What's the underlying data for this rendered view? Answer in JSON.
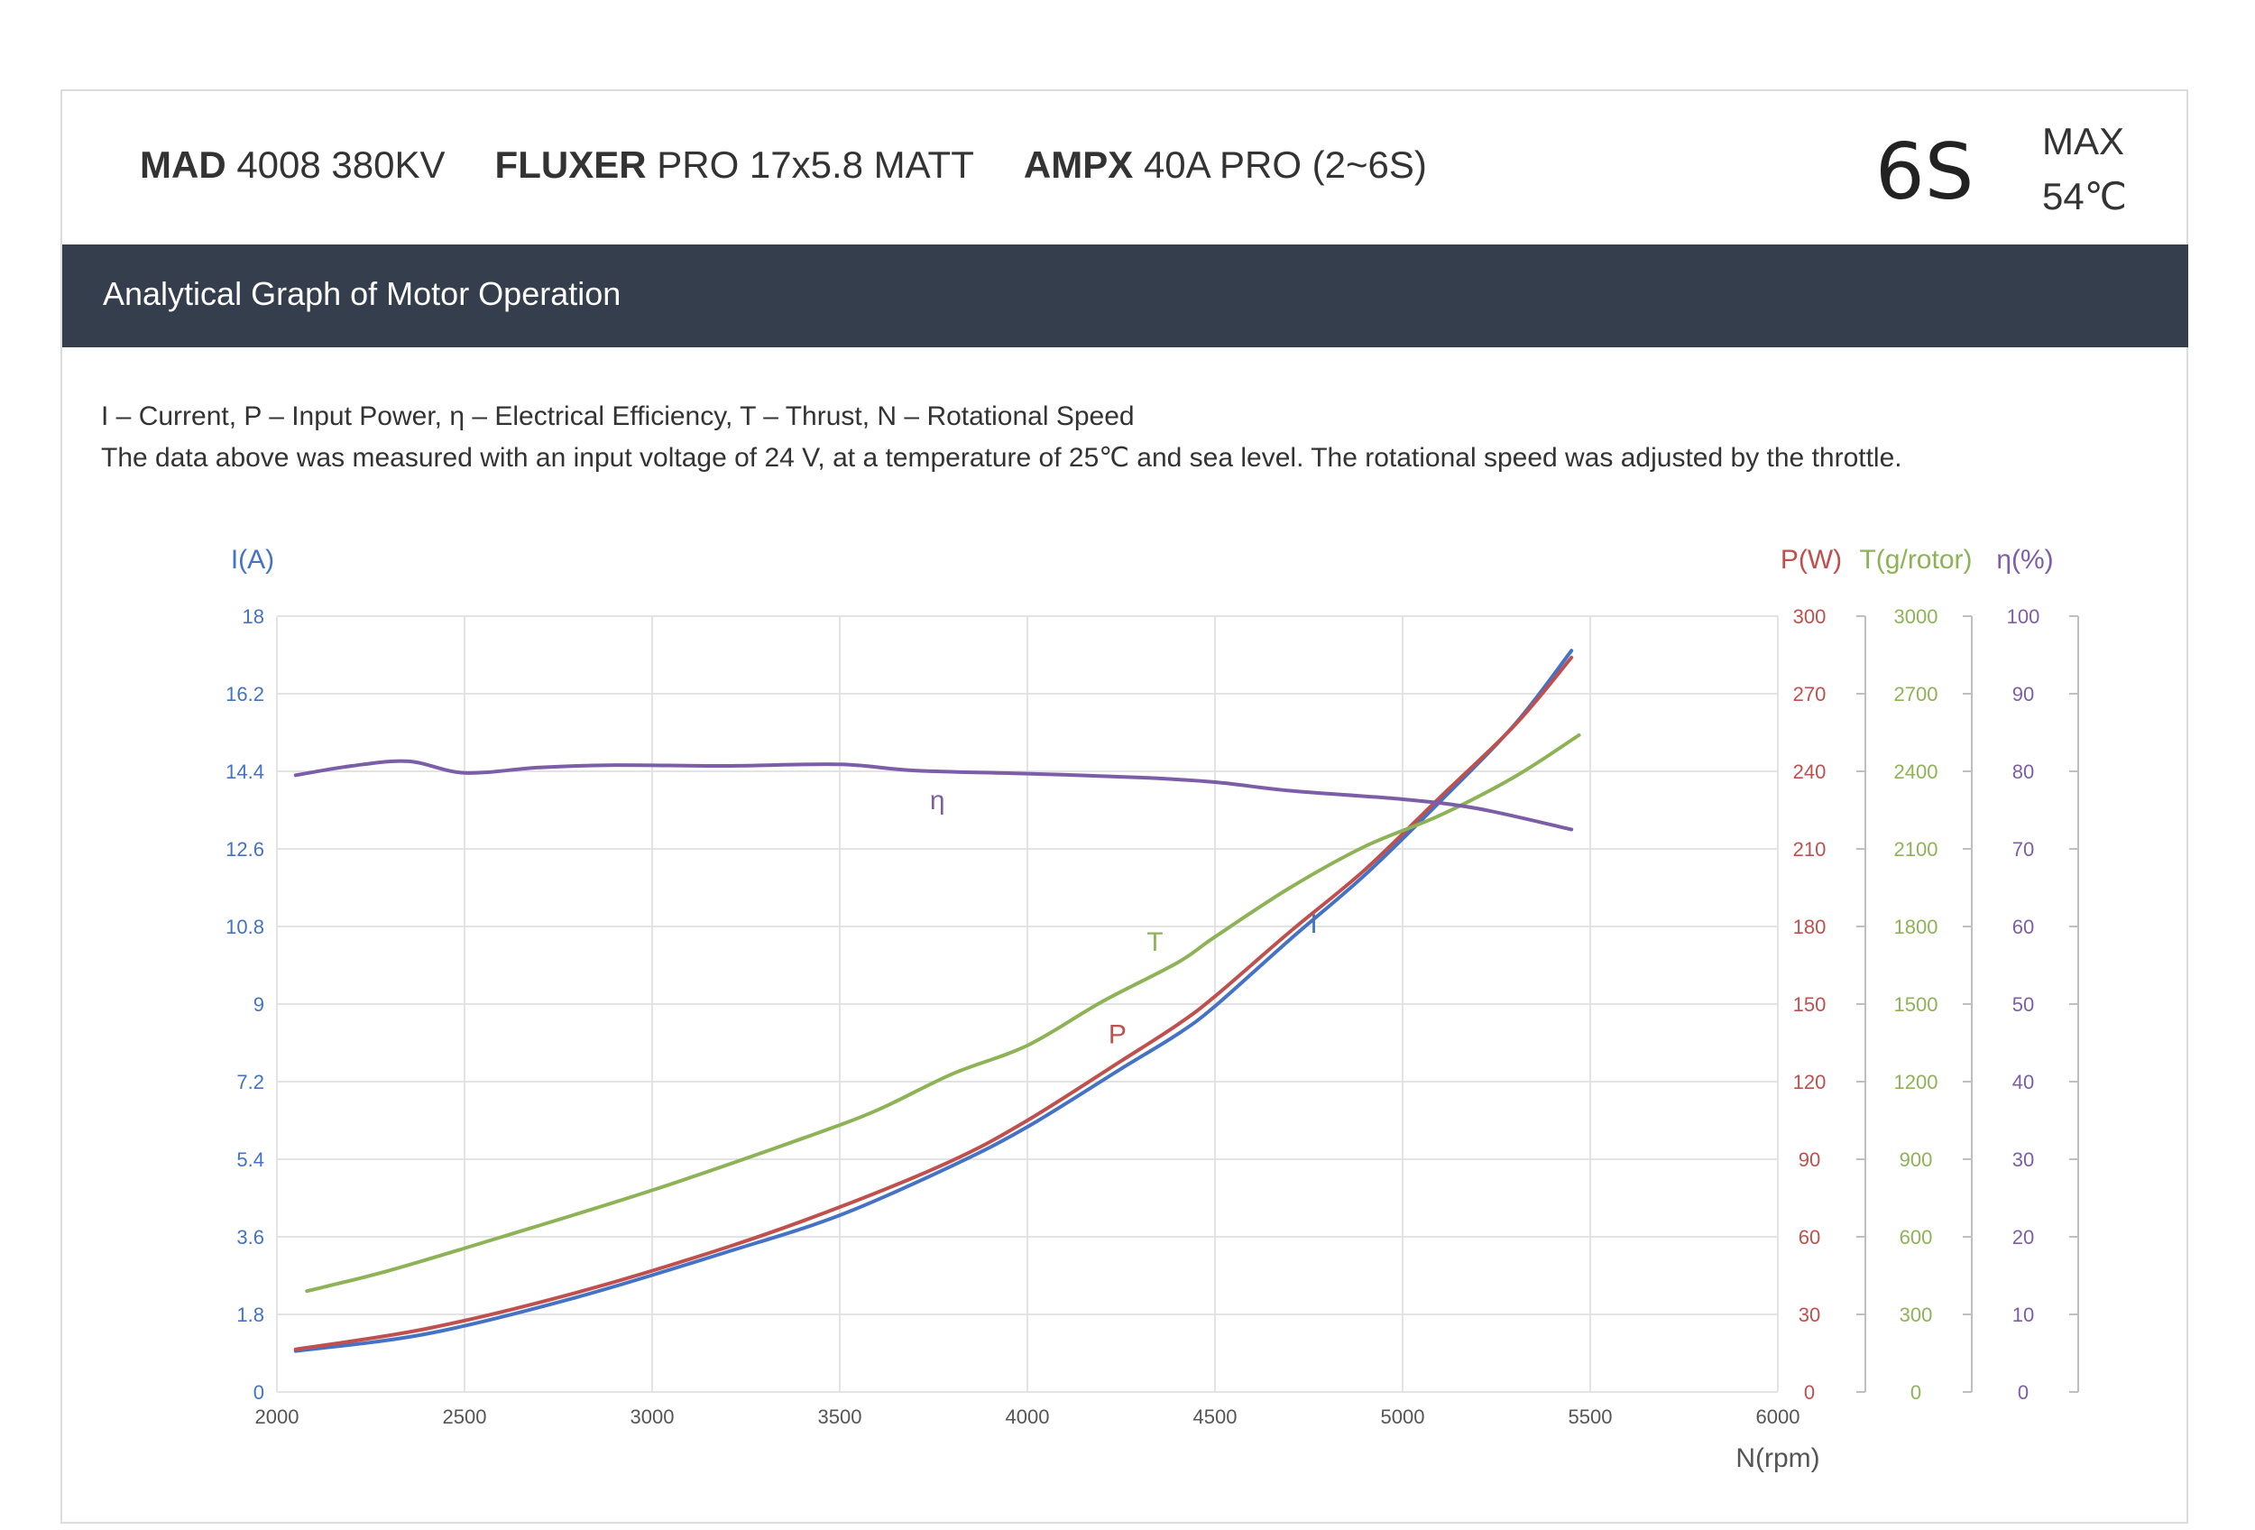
{
  "header": {
    "motor_brand": "MAD",
    "motor_model": "4008 380KV",
    "prop_brand": "FLUXER",
    "prop_model": "PRO 17x5.8 MATT",
    "esc_brand": "AMPX",
    "esc_model": "40A PRO (2~6S)",
    "cells": "6S",
    "max_label": "MAX",
    "max_temp": "54℃"
  },
  "section_title": "Analytical Graph of Motor Operation",
  "legend_line": "I – Current, P – Input Power, η – Electrical Efficiency, T – Thrust,   N – Rotational Speed",
  "note_line": "The data above was measured with an input voltage of 24 V, at a temperature of 25℃ and sea level. The rotational speed was adjusted by the throttle.",
  "colors": {
    "current": "#4472c4",
    "power": "#c0504d",
    "thrust": "#8db356",
    "efficiency": "#7b5ea7",
    "band": "#343e4d"
  },
  "chart_data": {
    "type": "line",
    "xlabel": "N(rpm)",
    "xlim": [
      2000,
      6000
    ],
    "x_ticks": [
      "2000",
      "2500",
      "3000",
      "3500",
      "4000",
      "4500",
      "5000",
      "5500",
      "6000"
    ],
    "axes": {
      "current": {
        "label": "I(A)",
        "range": [
          0,
          18
        ],
        "ticks": [
          "0",
          "1.8",
          "3.6",
          "5.4",
          "7.2",
          "9",
          "10.8",
          "12.6",
          "14.4",
          "16.2",
          "18"
        ]
      },
      "power": {
        "label": "P(W)",
        "range": [
          0,
          300
        ],
        "ticks": [
          "0",
          "30",
          "60",
          "90",
          "120",
          "150",
          "180",
          "210",
          "240",
          "270",
          "300"
        ]
      },
      "thrust": {
        "label": "T(g/rotor)",
        "range": [
          0,
          3000
        ],
        "ticks": [
          "0",
          "300",
          "600",
          "900",
          "1200",
          "1500",
          "1800",
          "2100",
          "2400",
          "2700",
          "3000"
        ]
      },
      "efficiency": {
        "label": "η(%)",
        "range": [
          0,
          100
        ],
        "ticks": [
          "0",
          "10",
          "20",
          "30",
          "40",
          "50",
          "60",
          "70",
          "80",
          "90",
          "100"
        ]
      }
    },
    "grid": true,
    "series": [
      {
        "name": "I",
        "axis": "current",
        "x": [
          2050,
          2400,
          2800,
          3200,
          3500,
          3800,
          4000,
          4250,
          4400,
          4500,
          4700,
          4900,
          5100,
          5300,
          5450
        ],
        "values": [
          0.95,
          1.35,
          2.2,
          3.25,
          4.1,
          5.25,
          6.15,
          7.5,
          8.3,
          8.95,
          10.5,
          12.0,
          13.7,
          15.5,
          17.2
        ]
      },
      {
        "name": "P",
        "axis": "power",
        "x": [
          2050,
          2400,
          2800,
          3200,
          3500,
          3800,
          4000,
          4250,
          4400,
          4500,
          4700,
          4900,
          5100,
          5300,
          5450
        ],
        "values": [
          16.5,
          24.5,
          38.5,
          56,
          71.5,
          89.5,
          105,
          128,
          142,
          153,
          178,
          202,
          230,
          258,
          284
        ]
      },
      {
        "name": "T",
        "axis": "thrust",
        "x": [
          2080,
          2300,
          2600,
          3000,
          3400,
          3600,
          3800,
          4000,
          4200,
          4400,
          4500,
          4700,
          4900,
          5100,
          5300,
          5470
        ],
        "values": [
          390,
          470,
          600,
          780,
          980,
          1090,
          1230,
          1340,
          1510,
          1660,
          1760,
          1950,
          2110,
          2230,
          2380,
          2540
        ]
      },
      {
        "name": "η",
        "axis": "efficiency",
        "x": [
          2050,
          2200,
          2350,
          2500,
          2700,
          2900,
          3200,
          3500,
          3700,
          4000,
          4300,
          4500,
          4700,
          5000,
          5200,
          5450
        ],
        "values": [
          79.5,
          80.7,
          81.3,
          79.8,
          80.5,
          80.8,
          80.7,
          80.9,
          80.1,
          79.7,
          79.2,
          78.6,
          77.5,
          76.4,
          75.2,
          72.5
        ]
      }
    ],
    "annotations": [
      {
        "text": "η",
        "series": "η",
        "x": 3760
      },
      {
        "text": "T",
        "series": "T",
        "x": 4340
      },
      {
        "text": "P",
        "series": "P",
        "x": 4240
      },
      {
        "text": "I",
        "series": "I",
        "x": 4720
      }
    ]
  }
}
